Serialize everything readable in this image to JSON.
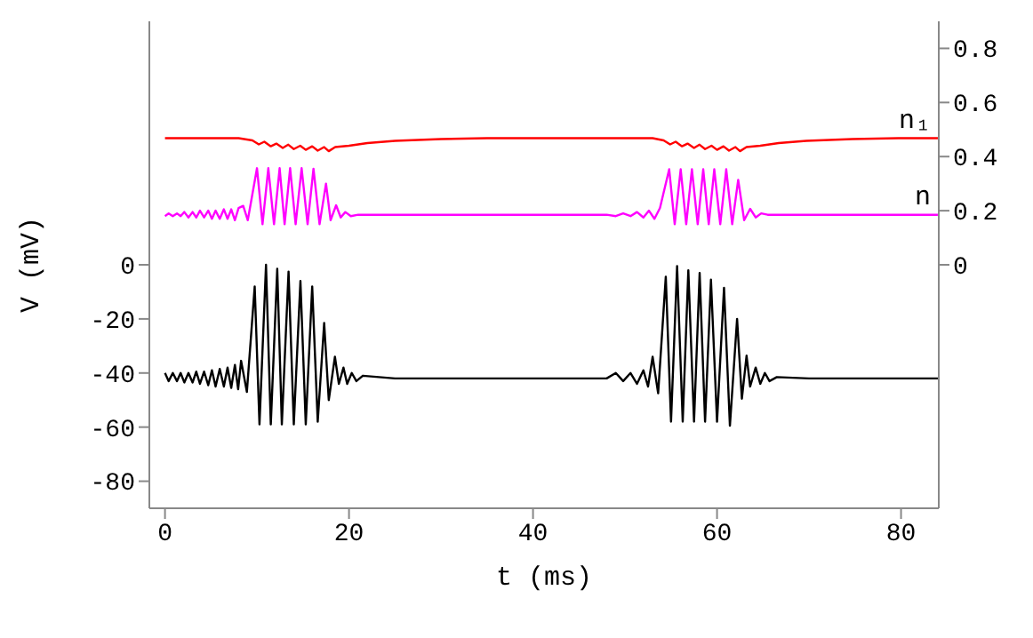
{
  "chart_data": {
    "type": "line",
    "xlabel": "t (ms)",
    "ylabel": "V (mV)",
    "xlim": [
      -1.7,
      84.1
    ],
    "xticks": [
      0,
      20,
      40,
      60,
      80
    ],
    "ylim": [
      -90,
      90
    ],
    "yticks": [
      0,
      -20,
      -40,
      -60,
      -80
    ],
    "y2lim": [
      -0.9,
      0.9
    ],
    "y2ticks": [
      0,
      0.2,
      0.4,
      0.6,
      0.8
    ],
    "series": [
      {
        "color": "#000000",
        "x": [
          0,
          0.4,
          0.85,
          1.3,
          1.7,
          2.1,
          2.55,
          3.0,
          3.4,
          3.8,
          4.25,
          4.7,
          5.1,
          5.5,
          5.95,
          6.4,
          6.8,
          7.2,
          7.6,
          7.95,
          8.27,
          8.9,
          9.75,
          10.27,
          10.98,
          11.5,
          12.2,
          12.7,
          13.43,
          14.0,
          14.72,
          15.3,
          16.0,
          16.6,
          17.3,
          17.8,
          18.47,
          18.9,
          19.4,
          19.8,
          20.3,
          20.8,
          21.5,
          25,
          30,
          35,
          40,
          45,
          48,
          49,
          49.8,
          50.6,
          51.3,
          52.0,
          52.5,
          53.0,
          53.6,
          54.43,
          55.0,
          55.66,
          56.27,
          56.88,
          57.5,
          58.11,
          58.7,
          59.34,
          60.0,
          60.76,
          61.4,
          62.18,
          62.7,
          63.21,
          63.6,
          64.2,
          64.7,
          65.2,
          65.7,
          66.5,
          70,
          75,
          80,
          84
        ],
        "values": [
          -40,
          -43,
          -40,
          -43,
          -40,
          -43.5,
          -40,
          -43.5,
          -39.5,
          -44,
          -39.5,
          -44.5,
          -39,
          -45,
          -38.5,
          -45,
          -38,
          -45.5,
          -37,
          -46,
          -35.5,
          -47,
          -8,
          -59,
          0,
          -59,
          -1.5,
          -59,
          -2.5,
          -59,
          -6,
          -59,
          -8,
          -58,
          -21.5,
          -50,
          -34,
          -44,
          -38,
          -44,
          -40,
          -43,
          -41,
          -42,
          -42,
          -42,
          -42,
          -42,
          -42,
          -40,
          -43,
          -40,
          -44,
          -39,
          -45,
          -34,
          -47.5,
          -4.4,
          -58,
          -0.5,
          -58,
          -2,
          -58,
          -3,
          -58,
          -5.5,
          -58,
          -8.5,
          -59.5,
          -20,
          -49.5,
          -33.6,
          -45,
          -38,
          -44,
          -40,
          -43,
          -41.5,
          -42,
          -42,
          -42,
          -42
        ]
      },
      {
        "name": "n",
        "color": "#ff00ff",
        "axis": "y2",
        "x": [
          0,
          0.4,
          0.85,
          1.3,
          1.7,
          2.1,
          2.55,
          3.0,
          3.4,
          3.8,
          4.25,
          4.7,
          5.1,
          5.5,
          5.95,
          6.4,
          6.8,
          7.2,
          7.6,
          8.0,
          8.5,
          9.0,
          10.0,
          10.6,
          11.23,
          11.85,
          12.46,
          13.0,
          13.6,
          14.2,
          14.85,
          15.5,
          16.14,
          16.8,
          17.5,
          18.0,
          18.6,
          19.1,
          19.6,
          20.2,
          21,
          25,
          30,
          35,
          40,
          45,
          48,
          49,
          49.8,
          50.6,
          51.3,
          52.0,
          52.6,
          53.2,
          53.8,
          54.8,
          55.4,
          56.05,
          56.65,
          57.27,
          57.9,
          58.5,
          59.1,
          59.7,
          60.35,
          61.0,
          61.65,
          62.3,
          62.95,
          63.6,
          64.2,
          64.8,
          65.5,
          70,
          75,
          80,
          84
        ],
        "values": [
          0.18,
          0.19,
          0.18,
          0.19,
          0.18,
          0.195,
          0.175,
          0.195,
          0.175,
          0.2,
          0.175,
          0.2,
          0.17,
          0.2,
          0.17,
          0.205,
          0.17,
          0.205,
          0.165,
          0.21,
          0.218,
          0.165,
          0.357,
          0.15,
          0.357,
          0.15,
          0.357,
          0.15,
          0.357,
          0.15,
          0.357,
          0.15,
          0.355,
          0.15,
          0.3,
          0.165,
          0.22,
          0.175,
          0.195,
          0.18,
          0.185,
          0.185,
          0.185,
          0.185,
          0.185,
          0.185,
          0.185,
          0.18,
          0.19,
          0.18,
          0.195,
          0.175,
          0.2,
          0.17,
          0.21,
          0.353,
          0.15,
          0.353,
          0.15,
          0.353,
          0.15,
          0.353,
          0.15,
          0.353,
          0.15,
          0.353,
          0.15,
          0.314,
          0.165,
          0.207,
          0.175,
          0.19,
          0.185,
          0.185,
          0.185,
          0.185,
          0.185
        ]
      },
      {
        "name": "n₁",
        "color": "#ff0000",
        "axis": "y2",
        "x": [
          0,
          8,
          9.5,
          10.2,
          10.8,
          11.5,
          12.1,
          12.8,
          13.4,
          14.0,
          14.7,
          15.3,
          16.0,
          16.6,
          17.3,
          17.8,
          18.5,
          20,
          22,
          25,
          30,
          35,
          53,
          54.2,
          54.9,
          55.5,
          56.2,
          56.8,
          57.5,
          58.1,
          58.7,
          59.4,
          60.0,
          60.7,
          61.3,
          62.0,
          62.5,
          63.2,
          64.7,
          66.7,
          69.7,
          74.7,
          79.7,
          84
        ],
        "values": [
          0.468,
          0.468,
          0.46,
          0.445,
          0.455,
          0.438,
          0.448,
          0.432,
          0.444,
          0.428,
          0.44,
          0.425,
          0.438,
          0.422,
          0.435,
          0.42,
          0.435,
          0.44,
          0.45,
          0.458,
          0.465,
          0.468,
          0.468,
          0.46,
          0.445,
          0.455,
          0.438,
          0.448,
          0.432,
          0.444,
          0.428,
          0.44,
          0.425,
          0.438,
          0.422,
          0.435,
          0.42,
          0.435,
          0.44,
          0.45,
          0.458,
          0.465,
          0.468,
          0.468
        ]
      }
    ]
  }
}
